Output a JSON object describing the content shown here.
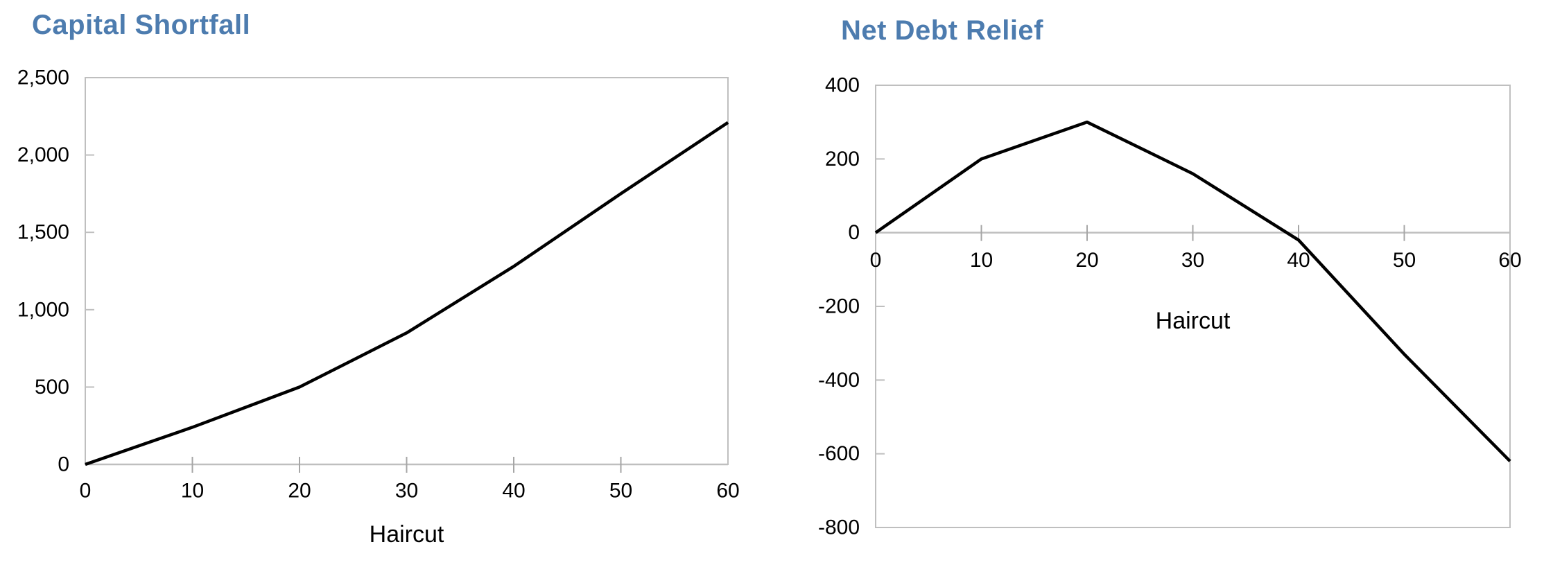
{
  "figure": {
    "background": "#ffffff"
  },
  "styles": {
    "title_color": "#4D7CAF",
    "axis_color": "#BFBFBF",
    "tick_color": "#A6A6A6",
    "series_color": "#000000",
    "label_color": "#000000"
  },
  "chart_data": [
    {
      "type": "line",
      "title": "Capital Shortfall",
      "xlabel": "Haircut",
      "ylabel": "",
      "series_name": "Capital Shortfall",
      "x": [
        0,
        10,
        20,
        30,
        40,
        50,
        60
      ],
      "values": [
        0,
        240,
        500,
        850,
        1280,
        1750,
        2210
      ],
      "xlim": [
        0,
        60
      ],
      "ylim": [
        0,
        2500
      ],
      "x_axis_position": 0,
      "x_tick_values": [
        0,
        10,
        20,
        30,
        40,
        50,
        60
      ],
      "x_tick_labels": [
        "0",
        "10",
        "20",
        "30",
        "40",
        "50",
        "60"
      ],
      "y_tick_values": [
        0,
        500,
        1000,
        1500,
        2000,
        2500
      ],
      "y_tick_labels": [
        "0",
        "500",
        "1,000",
        "1,500",
        "2,000",
        "2,500"
      ],
      "grid": false,
      "legend": "none"
    },
    {
      "type": "line",
      "title": "Net Debt Relief",
      "xlabel": "Haircut",
      "ylabel": "",
      "series_name": "Net Debt Relief",
      "x": [
        0,
        10,
        20,
        30,
        40,
        50,
        60
      ],
      "values": [
        0,
        200,
        300,
        160,
        -20,
        -330,
        -620
      ],
      "xlim": [
        0,
        60
      ],
      "ylim": [
        -800,
        400
      ],
      "x_axis_position": 0,
      "x_tick_values": [
        0,
        10,
        20,
        30,
        40,
        50,
        60
      ],
      "x_tick_labels": [
        "0",
        "10",
        "20",
        "30",
        "40",
        "50",
        "60"
      ],
      "y_tick_values": [
        400,
        200,
        0,
        -200,
        -400,
        -600,
        -800
      ],
      "y_tick_labels": [
        "400",
        "200",
        "0",
        "-200",
        "-400",
        "-600",
        "-800"
      ],
      "grid": false,
      "legend": "none"
    }
  ]
}
